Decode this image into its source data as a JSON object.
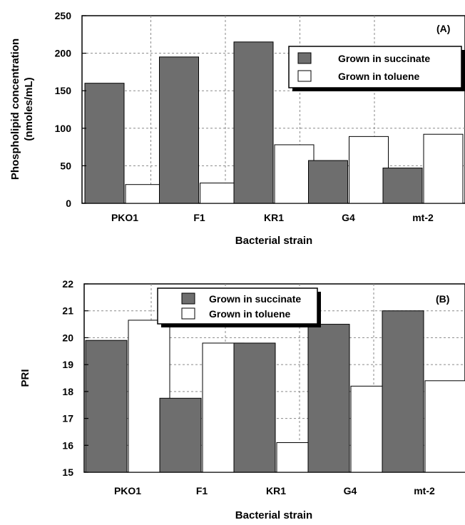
{
  "chart_data": [
    {
      "type": "bar",
      "panel": "(A)",
      "xlabel": "Bacterial strain",
      "ylabel_lines": [
        "Phospholipid concentration",
        "(nmoles/mL)"
      ],
      "categories": [
        "PKO1",
        "F1",
        "KR1",
        "G4",
        "mt-2"
      ],
      "ylim": [
        0,
        250
      ],
      "yticks": [
        0,
        50,
        100,
        150,
        200,
        250
      ],
      "grid": true,
      "legend_position": "top-right",
      "series": [
        {
          "name": "Grown in succinate",
          "color": "#6e6e6e",
          "values": [
            160,
            195,
            215,
            57,
            47
          ]
        },
        {
          "name": "Grown in toluene",
          "color": "#ffffff",
          "values": [
            25,
            27,
            78,
            89,
            92
          ]
        }
      ]
    },
    {
      "type": "bar",
      "panel": "(B)",
      "xlabel": "Bacterial strain",
      "ylabel": "PRI",
      "categories": [
        "PKO1",
        "F1",
        "KR1",
        "G4",
        "mt-2"
      ],
      "ylim": [
        15,
        22
      ],
      "yticks": [
        15,
        16,
        17,
        18,
        19,
        20,
        21,
        22
      ],
      "grid": true,
      "legend_position": "top-center",
      "series": [
        {
          "name": "Grown in succinate",
          "color": "#6e6e6e",
          "values": [
            19.9,
            17.75,
            19.8,
            20.5,
            21.0
          ]
        },
        {
          "name": "Grown in toluene",
          "color": "#ffffff",
          "values": [
            20.65,
            19.8,
            16.1,
            18.2,
            18.4
          ]
        }
      ]
    }
  ]
}
